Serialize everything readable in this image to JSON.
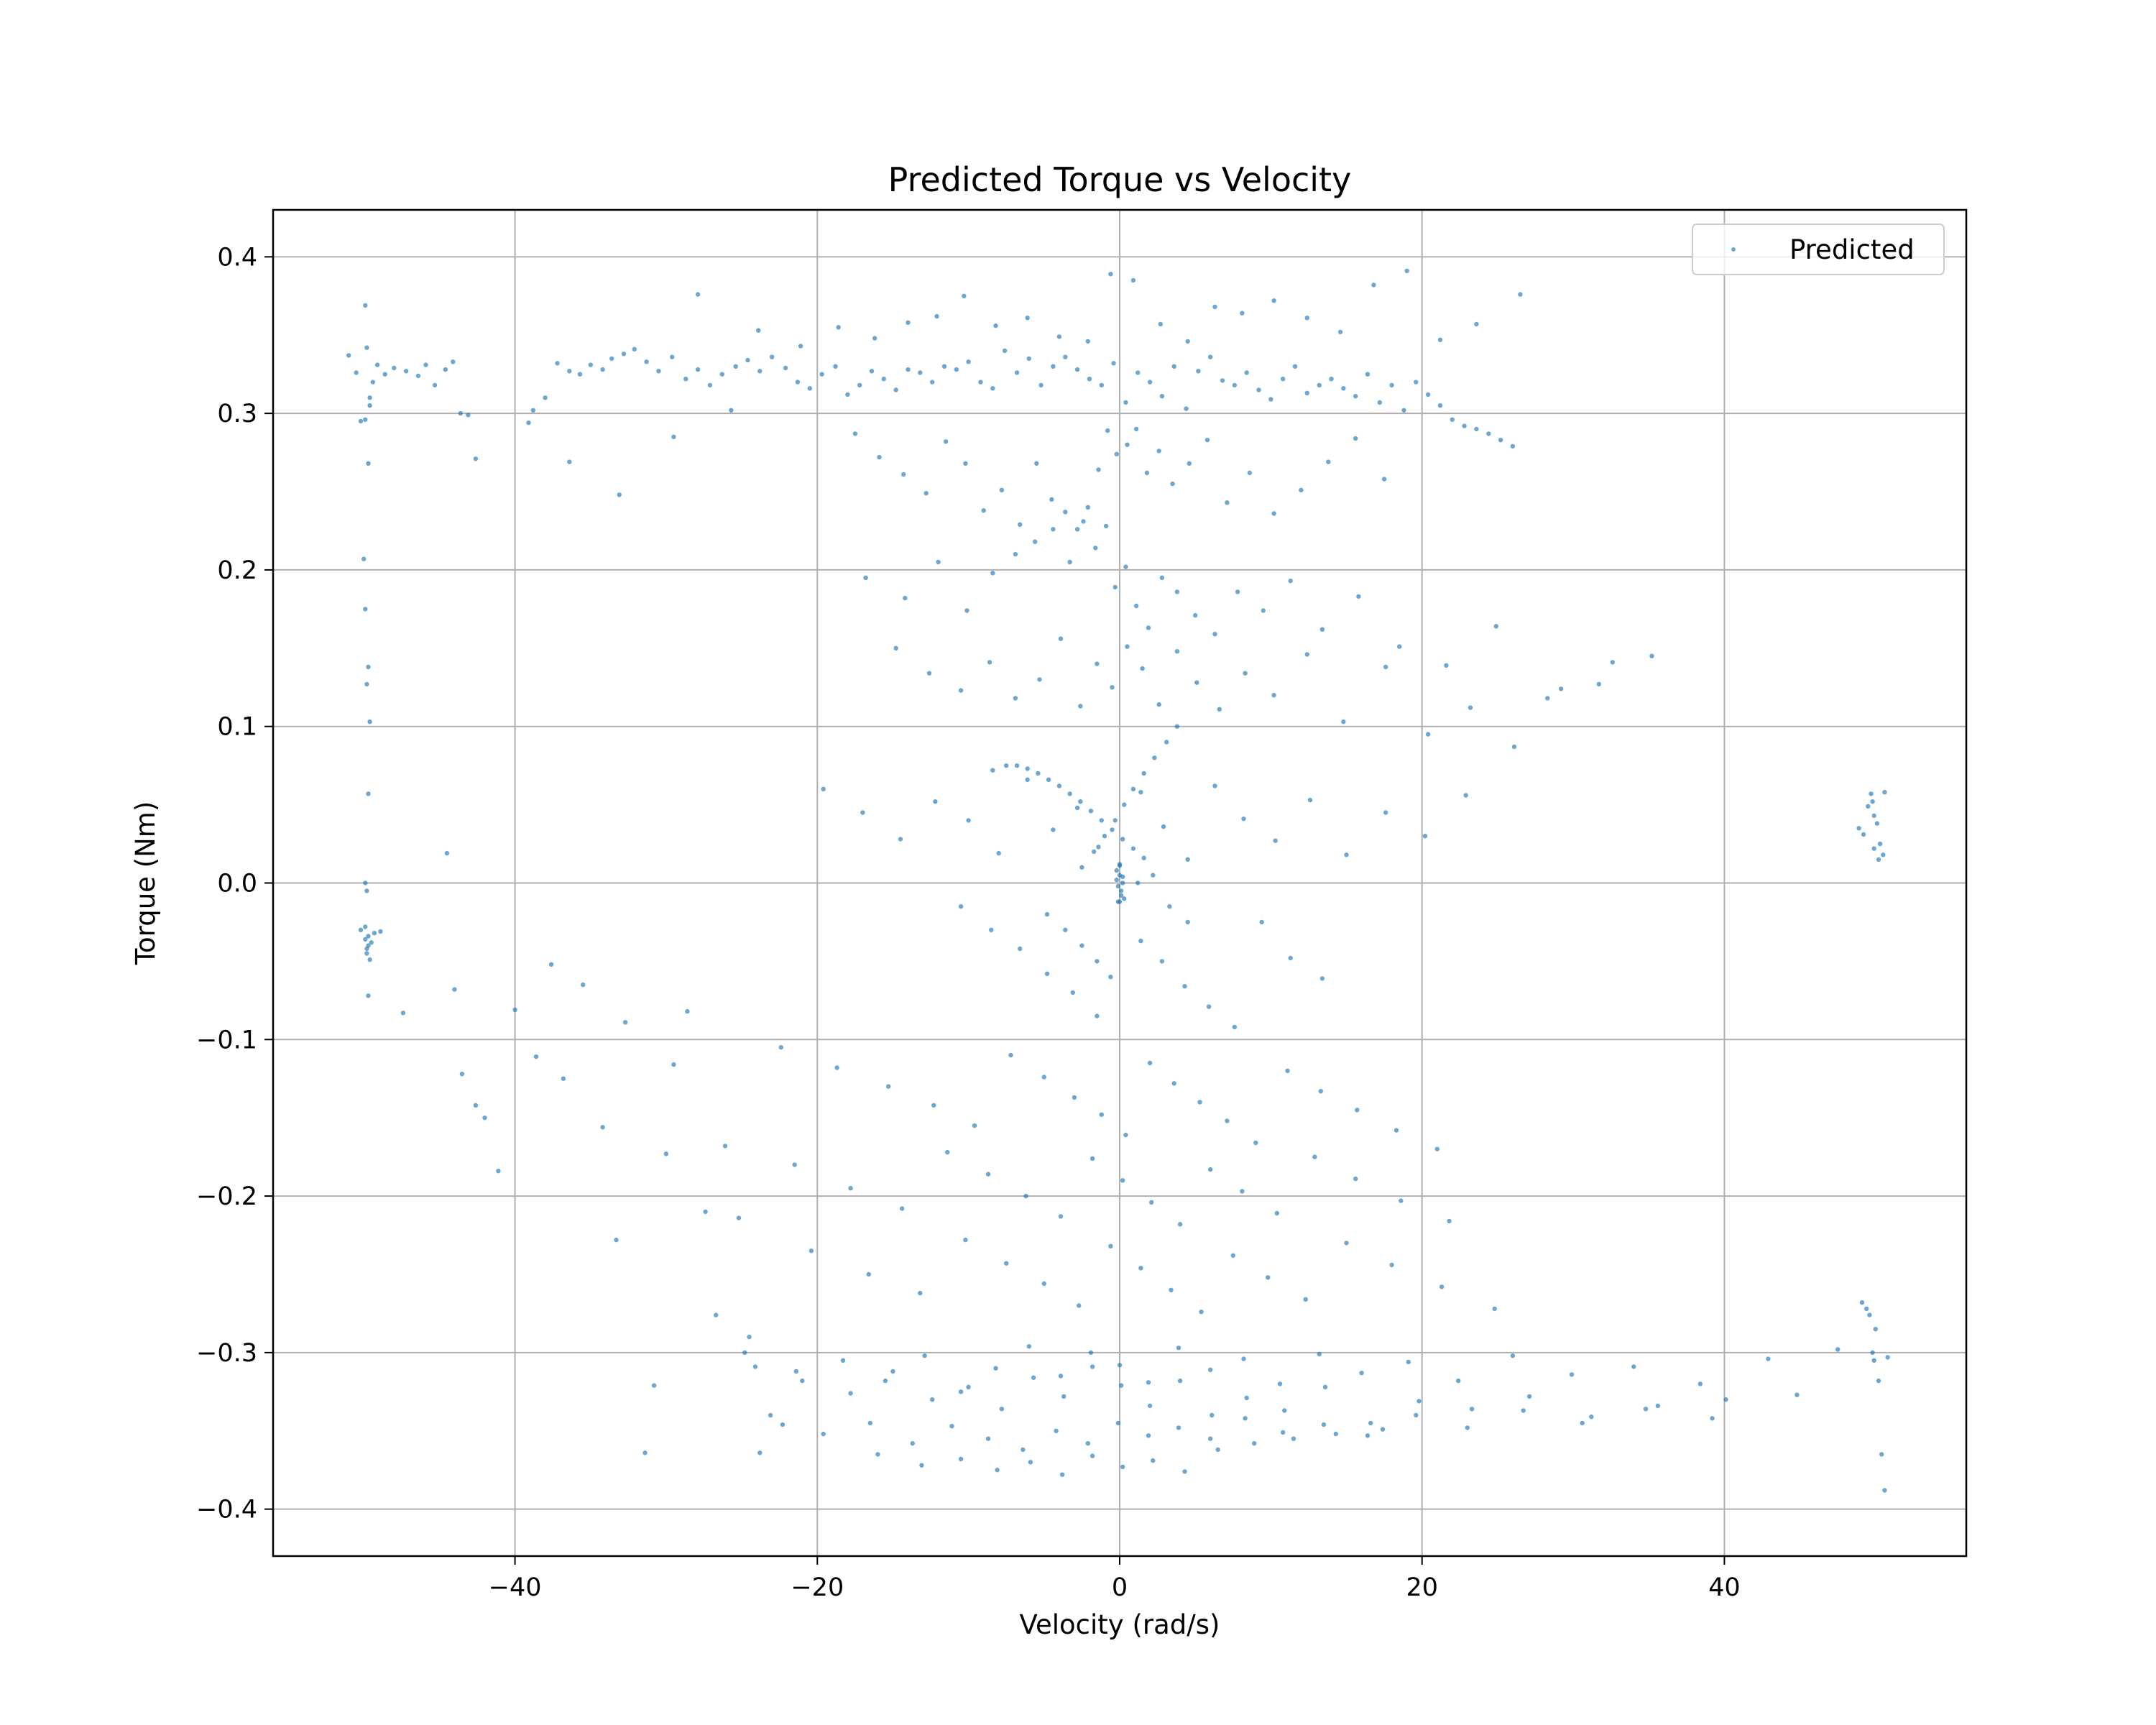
{
  "chart_data": {
    "type": "scatter",
    "title": "Predicted Torque vs Velocity",
    "xlabel": "Velocity (rad/s)",
    "ylabel": "Torque (Nm)",
    "xlim": [
      -56,
      56
    ],
    "ylim": [
      -0.43,
      0.43
    ],
    "xticks": [
      -40,
      -20,
      0,
      20,
      40
    ],
    "xtick_labels": [
      "−40",
      "−20",
      "0",
      "20",
      "40"
    ],
    "yticks": [
      -0.4,
      -0.3,
      -0.2,
      -0.1,
      0.0,
      0.1,
      0.2,
      0.3,
      0.4
    ],
    "ytick_labels": [
      "−0.4",
      "−0.3",
      "−0.2",
      "−0.1",
      "0.0",
      "0.1",
      "0.2",
      "0.3",
      "0.4"
    ],
    "grid": true,
    "legend_position": "upper right",
    "series": [
      {
        "name": "Predicted",
        "color": "#1f77b4",
        "x": [
          -51.0,
          -50.5,
          -50.2,
          -49.9,
          -49.8,
          -49.6,
          -49.4,
          -49.1,
          -48.6,
          -48.0,
          -47.2,
          -46.4,
          -45.9,
          -45.3,
          -44.6,
          -44.1,
          -43.6,
          -43.1,
          -42.6,
          -50.0,
          -49.9,
          -49.7,
          -49.8,
          -49.6,
          -49.7,
          -49.9,
          -49.8,
          -49.7,
          -49.9,
          -49.6,
          -50.2,
          -49.9,
          -49.7,
          -49.8,
          -49.6,
          -49.9,
          -49.7,
          -49.5,
          -49.8,
          -49.3,
          -49.7,
          -48.9,
          -47.4,
          -44.5,
          -44.0,
          -43.5,
          -42.6,
          -42.0,
          -41.1,
          -40.0,
          -38.6,
          -37.6,
          -36.8,
          -35.5,
          -34.2,
          -33.3,
          -32.7,
          -31.4,
          -30.8,
          -30.0,
          -29.5,
          -28.6,
          -27.4,
          -26.1,
          -25.2,
          -24.1,
          -23.8,
          -22.3,
          -39.1,
          -38.0,
          -37.2,
          -36.4,
          -35.7,
          -35.0,
          -34.2,
          -33.6,
          -32.8,
          -32.1,
          -31.3,
          -30.5,
          -29.6,
          -28.7,
          -27.9,
          -27.1,
          -26.3,
          -25.4,
          -24.6,
          -23.8,
          -23.0,
          -22.1,
          -21.3,
          -20.5,
          -19.7,
          -18.8,
          -18.0,
          -17.2,
          -16.4,
          -15.6,
          -14.8,
          -14.0,
          -13.2,
          -12.4,
          -11.6,
          -10.8,
          -10.0,
          -9.2,
          -8.4,
          -7.6,
          -6.8,
          -6.0,
          -5.2,
          -4.4,
          -3.6,
          -2.8,
          -2.0,
          -1.2,
          -0.4,
          0.4,
          1.2,
          2.0,
          2.8,
          3.6,
          4.4,
          5.2,
          6.0,
          6.8,
          7.6,
          8.4,
          9.2,
          10.0,
          10.8,
          11.6,
          12.4,
          13.2,
          14.0,
          14.8,
          15.6,
          16.4,
          17.2,
          18.0,
          18.8,
          19.6,
          20.4,
          21.2,
          22.0,
          22.8,
          23.6,
          24.4,
          25.2,
          26.0,
          -38.8,
          -36.4,
          -33.1,
          -29.5,
          -27.9,
          -25.7,
          -23.9,
          -21.1,
          -18.6,
          -16.2,
          -14.0,
          -12.1,
          -10.3,
          -8.2,
          -6.1,
          -4.0,
          -2.1,
          -0.6,
          0.9,
          2.7,
          4.5,
          6.3,
          8.1,
          10.2,
          12.4,
          14.6,
          16.8,
          19.0,
          21.2,
          23.6,
          26.5,
          -17.5,
          -15.9,
          -14.3,
          -12.8,
          -11.5,
          -10.2,
          -9.0,
          -7.8,
          -6.6,
          -5.5,
          -4.5,
          -3.6,
          -2.8,
          -2.1,
          -1.4,
          -0.8,
          -0.2,
          0.5,
          1.1,
          1.8,
          2.6,
          3.5,
          4.6,
          5.8,
          7.1,
          8.6,
          10.2,
          12.0,
          13.8,
          15.6,
          17.5,
          -16.8,
          -14.2,
          -12.0,
          -10.1,
          -8.4,
          -6.9,
          -5.6,
          -4.4,
          -3.3,
          -2.4,
          -1.6,
          -0.9,
          -0.3,
          0.4,
          1.1,
          1.9,
          2.8,
          3.8,
          5.0,
          6.3,
          7.8,
          9.5,
          11.3,
          13.4,
          15.8,
          18.5,
          21.6,
          24.9,
          28.3,
          31.7,
          35.2,
          -14.8,
          -12.6,
          -10.5,
          -8.6,
          -6.9,
          -5.3,
          -3.9,
          -2.6,
          -1.5,
          -0.5,
          0.5,
          1.5,
          2.6,
          3.8,
          5.1,
          6.6,
          8.3,
          10.2,
          12.4,
          14.8,
          17.6,
          20.4,
          23.2,
          26.1,
          29.2,
          32.6,
          -19.6,
          -17.0,
          -14.5,
          -12.2,
          -10.0,
          -8.0,
          -6.1,
          -4.4,
          -2.8,
          -1.4,
          0.0,
          1.4,
          2.9,
          4.5,
          6.3,
          8.2,
          10.3,
          12.6,
          15.0,
          17.6,
          20.2,
          22.9,
          -8.4,
          -7.5,
          -6.8,
          -6.1,
          -5.4,
          -4.7,
          -4.0,
          -3.3,
          -2.6,
          -1.9,
          -1.2,
          -0.5,
          0.2,
          0.9,
          1.6,
          -10.5,
          -8.5,
          -6.6,
          -4.8,
          -3.1,
          -1.5,
          0.0,
          1.4,
          2.8,
          4.3,
          5.9,
          7.6,
          9.4,
          11.3,
          13.4,
          -22.4,
          -18.7,
          -15.3,
          -12.3,
          -9.6,
          -7.2,
          -5.0,
          -3.0,
          -1.2,
          0.4,
          2.0,
          3.6,
          5.3,
          7.1,
          9.0,
          11.1,
          13.3,
          15.7,
          18.3,
          21.0,
          -21.5,
          -17.8,
          -14.4,
          -11.4,
          -8.7,
          -6.2,
          -3.9,
          -1.8,
          0.2,
          2.1,
          4.0,
          6.0,
          8.1,
          10.4,
          12.9,
          15.6,
          18.6,
          21.8,
          -20.4,
          -16.6,
          -13.2,
          -10.2,
          -7.5,
          -5.0,
          -2.7,
          -0.6,
          1.4,
          3.4,
          5.4,
          7.5,
          9.8,
          12.3,
          15.0,
          18.0,
          21.3,
          24.8,
          -26.7,
          -24.5,
          -21.0,
          -17.8,
          -15.0,
          -12.4,
          -10.0,
          -7.8,
          -5.7,
          -3.7,
          -1.8,
          0.1,
          2.0,
          4.0,
          6.1,
          8.4,
          10.9,
          13.6,
          16.6,
          19.8,
          23.3,
          27.1,
          31.2,
          35.6,
          40.1,
          44.8,
          -24.8,
          -21.4,
          -18.3,
          -15.5,
          -12.9,
          -10.5,
          -8.2,
          -6.0,
          -3.9,
          -1.9,
          0.0,
          1.9,
          3.9,
          6.0,
          8.2,
          10.6,
          13.2,
          16.0,
          19.1,
          22.4,
          26.0,
          29.9,
          34.0,
          38.4,
          42.9,
          47.5,
          -23.1,
          -19.6,
          -16.5,
          -13.7,
          -11.1,
          -8.7,
          -6.4,
          -4.2,
          -2.1,
          -0.1,
          1.9,
          3.9,
          6.0,
          8.3,
          10.8,
          13.5,
          16.4,
          19.6,
          23.0,
          26.7,
          30.6,
          34.8,
          39.2,
          -16.0,
          -13.1,
          -10.5,
          -8.1,
          -5.9,
          -3.8,
          -1.8,
          0.2,
          2.2,
          4.3,
          6.5,
          8.9,
          11.5,
          14.3,
          17.4,
          48.9,
          49.2,
          49.5,
          49.7,
          49.8,
          49.9,
          50.1,
          50.3,
          50.5,
          50.6,
          50.2,
          49.9,
          49.1,
          49.4,
          49.6,
          49.8,
          49.9,
          50.0,
          50.2,
          50.4,
          50.6,
          50.8,
          -2.5,
          -1.7,
          -1.0,
          -0.3,
          0.3,
          0.9,
          1.6,
          2.3,
          3.1,
          3.8,
          -4.8,
          -3.6,
          -2.5,
          -1.5,
          -0.6,
          0.3,
          1.2,
          2.2,
          3.3,
          4.5,
          -0.2,
          -0.1,
          0.0,
          0.1,
          0.2,
          -0.2,
          0.1,
          0.0,
          -0.1,
          0.2
        ],
        "y": [
          0.337,
          0.326,
          0.295,
          0.369,
          0.342,
          0.31,
          0.32,
          0.331,
          0.325,
          0.329,
          0.327,
          0.324,
          0.331,
          0.318,
          0.328,
          0.333,
          0.3,
          0.299,
          0.271,
          0.207,
          0.175,
          0.138,
          0.127,
          0.103,
          0.057,
          0.0,
          -0.005,
          0.268,
          0.296,
          0.305,
          -0.03,
          -0.036,
          -0.04,
          -0.045,
          -0.049,
          -0.028,
          -0.072,
          -0.038,
          -0.042,
          -0.032,
          -0.034,
          -0.031,
          -0.083,
          0.019,
          -0.068,
          -0.122,
          -0.142,
          -0.15,
          -0.184,
          -0.081,
          -0.111,
          -0.052,
          -0.125,
          -0.065,
          -0.156,
          -0.228,
          -0.089,
          -0.364,
          -0.321,
          -0.173,
          -0.116,
          -0.082,
          -0.21,
          -0.168,
          -0.214,
          -0.309,
          -0.364,
          -0.346,
          0.294,
          0.31,
          0.332,
          0.327,
          0.325,
          0.331,
          0.328,
          0.335,
          0.338,
          0.341,
          0.333,
          0.327,
          0.336,
          0.322,
          0.328,
          0.318,
          0.325,
          0.33,
          0.334,
          0.327,
          0.336,
          0.329,
          0.32,
          0.316,
          0.325,
          0.33,
          0.312,
          0.318,
          0.327,
          0.322,
          0.315,
          0.328,
          0.326,
          0.32,
          0.33,
          0.328,
          0.333,
          0.32,
          0.316,
          0.34,
          0.326,
          0.335,
          0.318,
          0.33,
          0.336,
          0.328,
          0.322,
          0.318,
          0.332,
          0.307,
          0.326,
          0.32,
          0.311,
          0.33,
          0.303,
          0.327,
          0.336,
          0.321,
          0.318,
          0.326,
          0.315,
          0.309,
          0.322,
          0.33,
          0.313,
          0.318,
          0.322,
          0.316,
          0.311,
          0.325,
          0.307,
          0.318,
          0.302,
          0.32,
          0.312,
          0.305,
          0.296,
          0.292,
          0.29,
          0.287,
          0.283,
          0.279,
          0.302,
          0.269,
          0.248,
          0.285,
          0.376,
          0.302,
          0.353,
          0.343,
          0.355,
          0.348,
          0.358,
          0.362,
          0.375,
          0.356,
          0.361,
          0.349,
          0.346,
          0.389,
          0.385,
          0.357,
          0.346,
          0.368,
          0.364,
          0.372,
          0.361,
          0.352,
          0.382,
          0.391,
          0.347,
          0.357,
          0.376,
          0.287,
          0.272,
          0.261,
          0.249,
          0.282,
          0.268,
          0.238,
          0.251,
          0.229,
          0.268,
          0.245,
          0.237,
          0.226,
          0.24,
          0.264,
          0.289,
          0.274,
          0.28,
          0.29,
          0.262,
          0.276,
          0.255,
          0.268,
          0.283,
          0.243,
          0.262,
          0.236,
          0.251,
          0.269,
          0.284,
          0.258,
          0.195,
          0.182,
          0.205,
          0.174,
          0.198,
          0.21,
          0.218,
          0.226,
          0.205,
          0.231,
          0.214,
          0.228,
          0.189,
          0.202,
          0.177,
          0.163,
          0.195,
          0.186,
          0.171,
          0.159,
          0.186,
          0.174,
          0.193,
          0.162,
          0.183,
          0.151,
          0.139,
          0.164,
          0.118,
          0.127,
          0.145,
          0.15,
          0.134,
          0.123,
          0.141,
          0.118,
          0.13,
          0.156,
          0.113,
          0.14,
          0.125,
          0.151,
          0.137,
          0.114,
          0.148,
          0.128,
          0.111,
          0.134,
          0.12,
          0.146,
          0.103,
          0.138,
          0.095,
          0.112,
          0.087,
          0.124,
          0.141,
          0.06,
          0.045,
          0.028,
          0.052,
          0.04,
          0.019,
          0.066,
          0.034,
          0.048,
          0.023,
          0.011,
          0.058,
          0.036,
          0.015,
          0.062,
          0.041,
          0.027,
          0.053,
          0.018,
          0.045,
          0.03,
          0.056,
          0.072,
          0.075,
          0.075,
          0.073,
          0.07,
          0.066,
          0.062,
          0.057,
          0.052,
          0.046,
          0.04,
          0.034,
          0.028,
          0.022,
          0.016,
          -0.015,
          -0.03,
          -0.042,
          -0.058,
          -0.07,
          -0.085,
          -0.012,
          -0.037,
          -0.05,
          -0.066,
          -0.079,
          -0.092,
          -0.025,
          -0.048,
          -0.061,
          -0.105,
          -0.118,
          -0.13,
          -0.142,
          -0.155,
          -0.11,
          -0.124,
          -0.137,
          -0.148,
          -0.161,
          -0.115,
          -0.128,
          -0.14,
          -0.152,
          -0.166,
          -0.12,
          -0.133,
          -0.145,
          -0.158,
          -0.17,
          -0.18,
          -0.195,
          -0.208,
          -0.172,
          -0.186,
          -0.2,
          -0.213,
          -0.176,
          -0.19,
          -0.204,
          -0.218,
          -0.183,
          -0.197,
          -0.211,
          -0.175,
          -0.189,
          -0.203,
          -0.216,
          -0.235,
          -0.25,
          -0.262,
          -0.228,
          -0.243,
          -0.256,
          -0.27,
          -0.232,
          -0.246,
          -0.26,
          -0.274,
          -0.238,
          -0.252,
          -0.266,
          -0.23,
          -0.244,
          -0.258,
          -0.272,
          -0.276,
          -0.29,
          -0.318,
          -0.326,
          -0.312,
          -0.33,
          -0.322,
          -0.336,
          -0.316,
          -0.328,
          -0.309,
          -0.321,
          -0.334,
          -0.318,
          -0.34,
          -0.329,
          -0.337,
          -0.322,
          -0.345,
          -0.331,
          -0.336,
          -0.328,
          -0.341,
          -0.334,
          -0.33,
          -0.327,
          -0.3,
          -0.312,
          -0.305,
          -0.318,
          -0.302,
          -0.325,
          -0.31,
          -0.296,
          -0.315,
          -0.3,
          -0.308,
          -0.319,
          -0.297,
          -0.311,
          -0.304,
          -0.32,
          -0.301,
          -0.313,
          -0.306,
          -0.318,
          -0.302,
          -0.314,
          -0.309,
          -0.32,
          -0.304,
          -0.298,
          -0.34,
          -0.352,
          -0.345,
          -0.358,
          -0.347,
          -0.355,
          -0.362,
          -0.35,
          -0.358,
          -0.345,
          -0.353,
          -0.348,
          -0.355,
          -0.342,
          -0.351,
          -0.346,
          -0.353,
          -0.34,
          -0.348,
          -0.337,
          -0.345,
          -0.336,
          -0.342,
          -0.365,
          -0.372,
          -0.368,
          -0.375,
          -0.37,
          -0.378,
          -0.366,
          -0.373,
          -0.369,
          -0.376,
          -0.362,
          -0.358,
          -0.355,
          -0.352,
          -0.349,
          0.035,
          0.031,
          0.049,
          0.057,
          0.052,
          0.043,
          0.038,
          0.025,
          0.018,
          0.058,
          0.015,
          0.022,
          -0.268,
          -0.272,
          -0.276,
          -0.3,
          -0.305,
          -0.285,
          -0.318,
          -0.365,
          -0.388,
          -0.303,
          0.01,
          0.02,
          0.03,
          0.04,
          0.05,
          0.06,
          0.07,
          0.08,
          0.09,
          0.1,
          -0.02,
          -0.03,
          -0.04,
          -0.05,
          -0.06,
          -0.01,
          0.0,
          0.005,
          -0.015,
          -0.025,
          0.002,
          -0.002,
          0.005,
          -0.005,
          0.0,
          0.008,
          -0.008,
          0.012,
          -0.012,
          0.004
        ]
      }
    ]
  }
}
